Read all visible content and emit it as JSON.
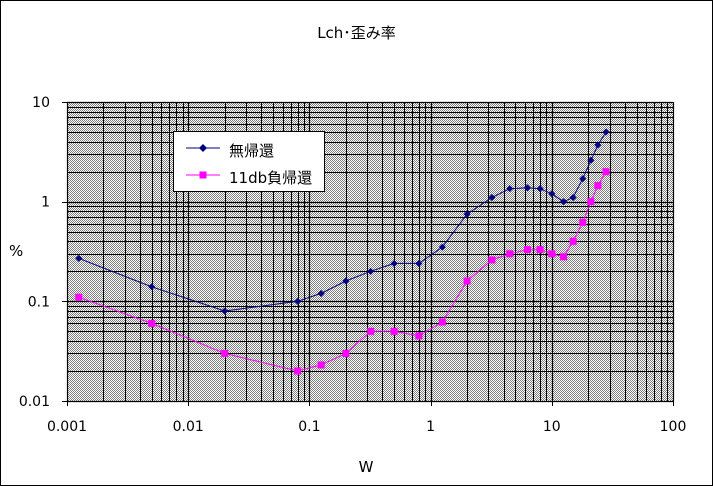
{
  "chart_data": {
    "type": "line",
    "title": "Lch･歪み率",
    "xlabel": "W",
    "ylabel": "%",
    "xscale": "log",
    "yscale": "log",
    "xlim": [
      0.001,
      100
    ],
    "ylim": [
      0.01,
      10
    ],
    "x_ticks": [
      "0.001",
      "0.01",
      "0.1",
      "1",
      "10",
      "100"
    ],
    "y_ticks": [
      "0.01",
      "0.1",
      "1",
      "10"
    ],
    "grid": true,
    "legend_position": "upper-left",
    "series": [
      {
        "name": "無帰還",
        "color": "#000080",
        "marker": "diamond",
        "x": [
          0.00125,
          0.005,
          0.02,
          0.08,
          0.125,
          0.2,
          0.32,
          0.5,
          0.8,
          1.25,
          2.0,
          3.2,
          4.5,
          6.3,
          8.0,
          10.0,
          12.5,
          15.0,
          18.0,
          21.0,
          24.0,
          28.0
        ],
        "y": [
          0.27,
          0.14,
          0.08,
          0.1,
          0.12,
          0.16,
          0.2,
          0.24,
          0.24,
          0.35,
          0.75,
          1.1,
          1.35,
          1.38,
          1.35,
          1.2,
          1.0,
          1.1,
          1.7,
          2.6,
          3.7,
          5.0
        ]
      },
      {
        "name": "11db負帰還",
        "color": "#ff00ff",
        "marker": "square",
        "x": [
          0.00125,
          0.005,
          0.02,
          0.08,
          0.125,
          0.2,
          0.32,
          0.5,
          0.8,
          1.25,
          2.0,
          3.2,
          4.5,
          6.3,
          8.0,
          10.0,
          12.5,
          15.0,
          18.0,
          21.0,
          24.0,
          28.0
        ],
        "y": [
          0.11,
          0.06,
          0.03,
          0.02,
          0.023,
          0.03,
          0.05,
          0.05,
          0.045,
          0.062,
          0.16,
          0.26,
          0.3,
          0.33,
          0.33,
          0.3,
          0.28,
          0.4,
          0.62,
          1.0,
          1.45,
          2.0
        ]
      }
    ]
  }
}
